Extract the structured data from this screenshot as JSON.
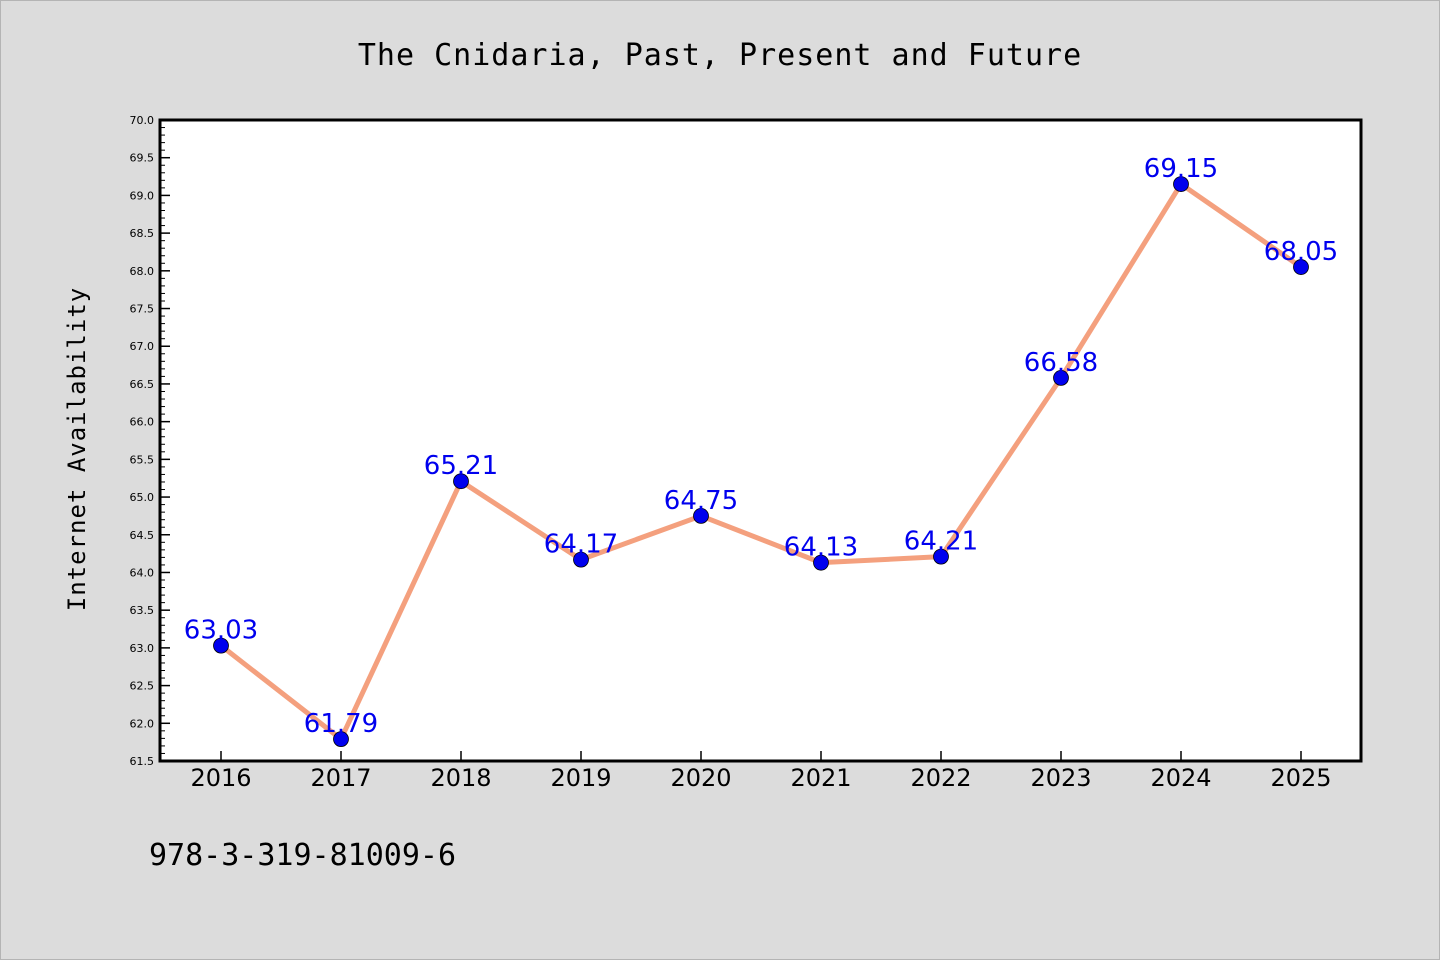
{
  "chart_data": {
    "type": "line",
    "title": "The Cnidaria, Past, Present and Future",
    "xlabel": "",
    "ylabel": "Internet Availability",
    "categories": [
      "2016",
      "2017",
      "2018",
      "2019",
      "2020",
      "2021",
      "2022",
      "2023",
      "2024",
      "2025"
    ],
    "series": [
      {
        "values": [
          63.03,
          61.79,
          65.21,
          64.17,
          64.75,
          64.13,
          64.21,
          66.58,
          69.15,
          68.05
        ],
        "labels": [
          "63.03",
          "61.79",
          "65.21",
          "64.17",
          "64.75",
          "64.13",
          "64.21",
          "66.58",
          "69.15",
          "68.05"
        ]
      }
    ],
    "ylim": [
      61.5,
      70.0
    ],
    "yticks": [
      "61.5",
      "62.0",
      "62.5",
      "63.0",
      "63.5",
      "64.0",
      "64.5",
      "65.0",
      "65.5",
      "66.0",
      "66.5",
      "67.0",
      "67.5",
      "68.0",
      "68.5",
      "69.0",
      "69.5",
      "70.0"
    ],
    "grid": false,
    "legend": "none",
    "colors": {
      "line": "#f4a07e",
      "marker": "#0000ee",
      "data_label": "#0000ee",
      "plot_background": "#ffffff",
      "figure_background": "#dcdcdc"
    }
  },
  "footer": {
    "isbn": "978-3-319-81009-6"
  }
}
